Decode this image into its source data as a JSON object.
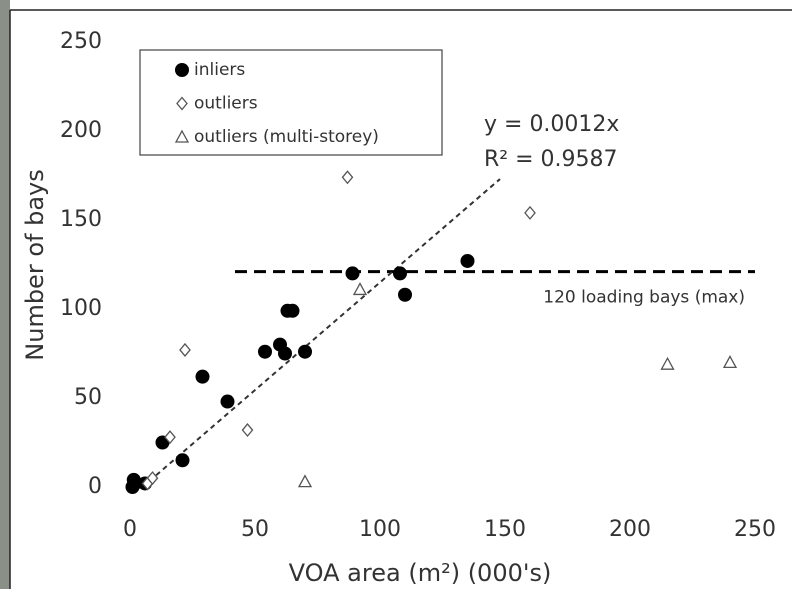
{
  "chart_data": {
    "type": "scatter",
    "xlabel": "VOA area (m²) (000's)",
    "ylabel": "Number of bays",
    "xlim": [
      0,
      250
    ],
    "xticks": [
      0,
      50,
      100,
      150,
      200,
      250
    ],
    "ylim": [
      0,
      250
    ],
    "yticks": [
      0,
      50,
      100,
      150,
      200,
      250
    ],
    "legend": "top-left",
    "series": [
      {
        "name": "inliers",
        "marker": "circle-filled",
        "color": "#000000",
        "x": [
          1,
          1.5,
          2,
          6,
          13,
          21,
          29,
          39,
          54,
          60,
          62,
          63,
          65,
          70,
          89,
          108,
          110,
          135
        ],
        "values": [
          0,
          4,
          2,
          2,
          25,
          15,
          62,
          48,
          76,
          80,
          75,
          99,
          99,
          76,
          120,
          120,
          108,
          127
        ]
      },
      {
        "name": "outliers",
        "marker": "diamond-open",
        "color": "#555555",
        "x": [
          7,
          9,
          16,
          22,
          47,
          87,
          160
        ],
        "values": [
          2,
          5,
          28,
          77,
          32,
          174,
          154
        ]
      },
      {
        "name": "outliers (multi-storey)",
        "marker": "triangle-open",
        "color": "#555555",
        "x": [
          70,
          92,
          215,
          240
        ],
        "values": [
          3,
          111,
          69,
          70
        ]
      }
    ],
    "trend_line": {
      "x": [
        5,
        148
      ],
      "y": [
        0,
        173
      ],
      "equation": "y = 0.0012x",
      "r_squared": "R² = 0.9587"
    },
    "reference_line": {
      "y": 121,
      "x": [
        42,
        250
      ],
      "label": "120 loading bays (max)"
    }
  }
}
